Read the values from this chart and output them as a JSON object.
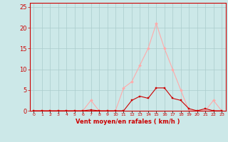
{
  "x_labels": [
    "0",
    "1",
    "2",
    "3",
    "4",
    "5",
    "6",
    "7",
    "8",
    "9",
    "10",
    "11",
    "12",
    "13",
    "14",
    "15",
    "16",
    "17",
    "18",
    "19",
    "20",
    "21",
    "22",
    "23"
  ],
  "x_values": [
    0,
    1,
    2,
    3,
    4,
    5,
    6,
    7,
    8,
    9,
    10,
    11,
    12,
    13,
    14,
    15,
    16,
    17,
    18,
    19,
    20,
    21,
    22,
    23
  ],
  "rafales": [
    0,
    0,
    0,
    0,
    0,
    0,
    0,
    2.5,
    0,
    0,
    0,
    5.5,
    7,
    11,
    15,
    21,
    15,
    10,
    5,
    0,
    0,
    0,
    2.5,
    0
  ],
  "moyen": [
    0,
    0,
    0,
    0,
    0,
    0,
    0,
    0.2,
    0,
    0,
    0,
    0,
    2.5,
    3.5,
    3,
    5.5,
    5.5,
    3,
    2.5,
    0.5,
    0,
    0.5,
    0,
    0
  ],
  "rafales_color": "#ffaaaa",
  "moyen_color": "#cc0000",
  "bg_color": "#cce8e8",
  "grid_color": "#aacccc",
  "ylabel_ticks": [
    0,
    5,
    10,
    15,
    20,
    25
  ],
  "xlabel": "Vent moyen/en rafales ( km/h )",
  "ylim": [
    0,
    26
  ],
  "xlim": [
    -0.5,
    23.5
  ]
}
